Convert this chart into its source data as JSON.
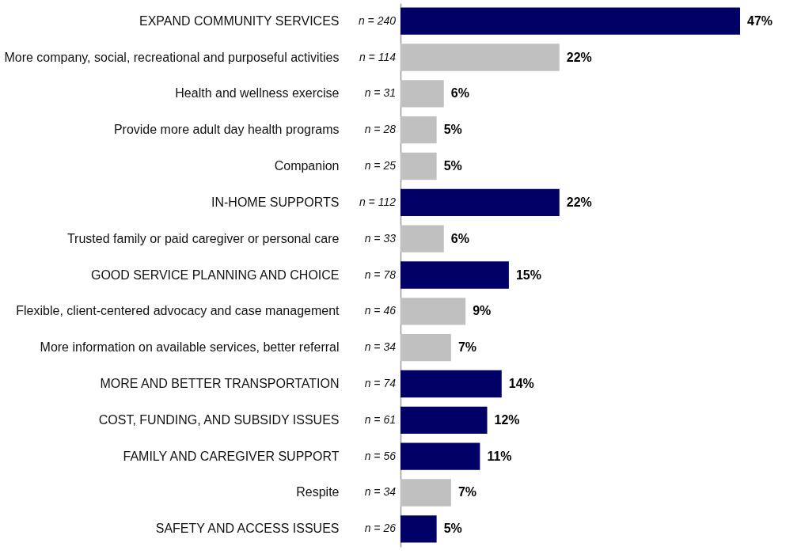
{
  "chart_data": {
    "type": "bar",
    "orientation": "horizontal",
    "categories": [
      "EXPAND COMMUNITY SERVICES",
      "More company, social, recreational and purposeful activities",
      "Health and wellness exercise",
      "Provide more adult day health programs",
      "Companion",
      "IN-HOME SUPPORTS",
      "Trusted family or paid caregiver or personal care",
      "GOOD SERVICE PLANNING AND CHOICE",
      "Flexible, client-centered advocacy and case management",
      "More information on available services, better referral",
      "MORE AND BETTER TRANSPORTATION",
      "COST, FUNDING, AND SUBSIDY ISSUES",
      "FAMILY AND CAREGIVER SUPPORT",
      "Respite",
      "SAFETY AND ACCESS ISSUES"
    ],
    "values": [
      47,
      22,
      6,
      5,
      5,
      22,
      6,
      15,
      9,
      7,
      14,
      12,
      11,
      7,
      5
    ],
    "value_labels": [
      "47%",
      "22%",
      "6%",
      "5%",
      "5%",
      "22%",
      "6%",
      "15%",
      "9%",
      "7%",
      "14%",
      "12%",
      "11%",
      "7%",
      "5%"
    ],
    "colors": [
      "#000066",
      "#c0c0c0",
      "#c0c0c0",
      "#c0c0c0",
      "#c0c0c0",
      "#000066",
      "#c0c0c0",
      "#000066",
      "#c0c0c0",
      "#c0c0c0",
      "#000066",
      "#000066",
      "#000066",
      "#c0c0c0",
      "#000066"
    ],
    "xlim": [
      0,
      55
    ],
    "tick_labels": "y",
    "annotations": [
      "n = 240",
      "n = 114",
      "n = 31",
      "n = 28",
      "n = 25",
      "n = 112",
      "n = 33",
      "n = 78",
      "n = 46",
      "n = 34",
      "n = 74",
      "n = 61",
      "n = 56",
      "n = 34",
      "n = 26"
    ]
  }
}
